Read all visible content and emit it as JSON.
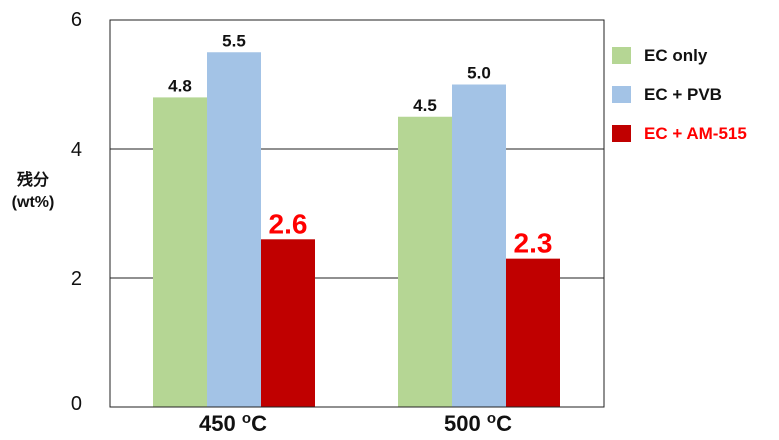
{
  "chart_data": {
    "type": "bar",
    "categories": [
      {
        "value": "450",
        "unit_super": "o",
        "unit": "C"
      },
      {
        "value": "500",
        "unit_super": "o",
        "unit": "C"
      }
    ],
    "series": [
      {
        "name": "EC only",
        "color": "#b5d694",
        "values": [
          4.8,
          4.5
        ],
        "labels": [
          "4.8",
          "4.5"
        ],
        "label_color": "#111111",
        "label_style": "normal"
      },
      {
        "name": "EC + PVB",
        "color": "#a3c3e6",
        "values": [
          5.5,
          5.0
        ],
        "labels": [
          "5.5",
          "5.0"
        ],
        "label_color": "#111111",
        "label_style": "normal"
      },
      {
        "name": "EC + AM-515",
        "color": "#c00000",
        "values": [
          2.6,
          2.3
        ],
        "labels": [
          "2.6",
          "2.3"
        ],
        "label_color": "#ff0000",
        "label_style": "large"
      }
    ],
    "ylabel_line1": "残分",
    "ylabel_line2": "(wt%)",
    "ylim": [
      0,
      6
    ],
    "yticks": [
      "0",
      "2",
      "4",
      "6"
    ],
    "grid": true,
    "legend_position": "right"
  }
}
